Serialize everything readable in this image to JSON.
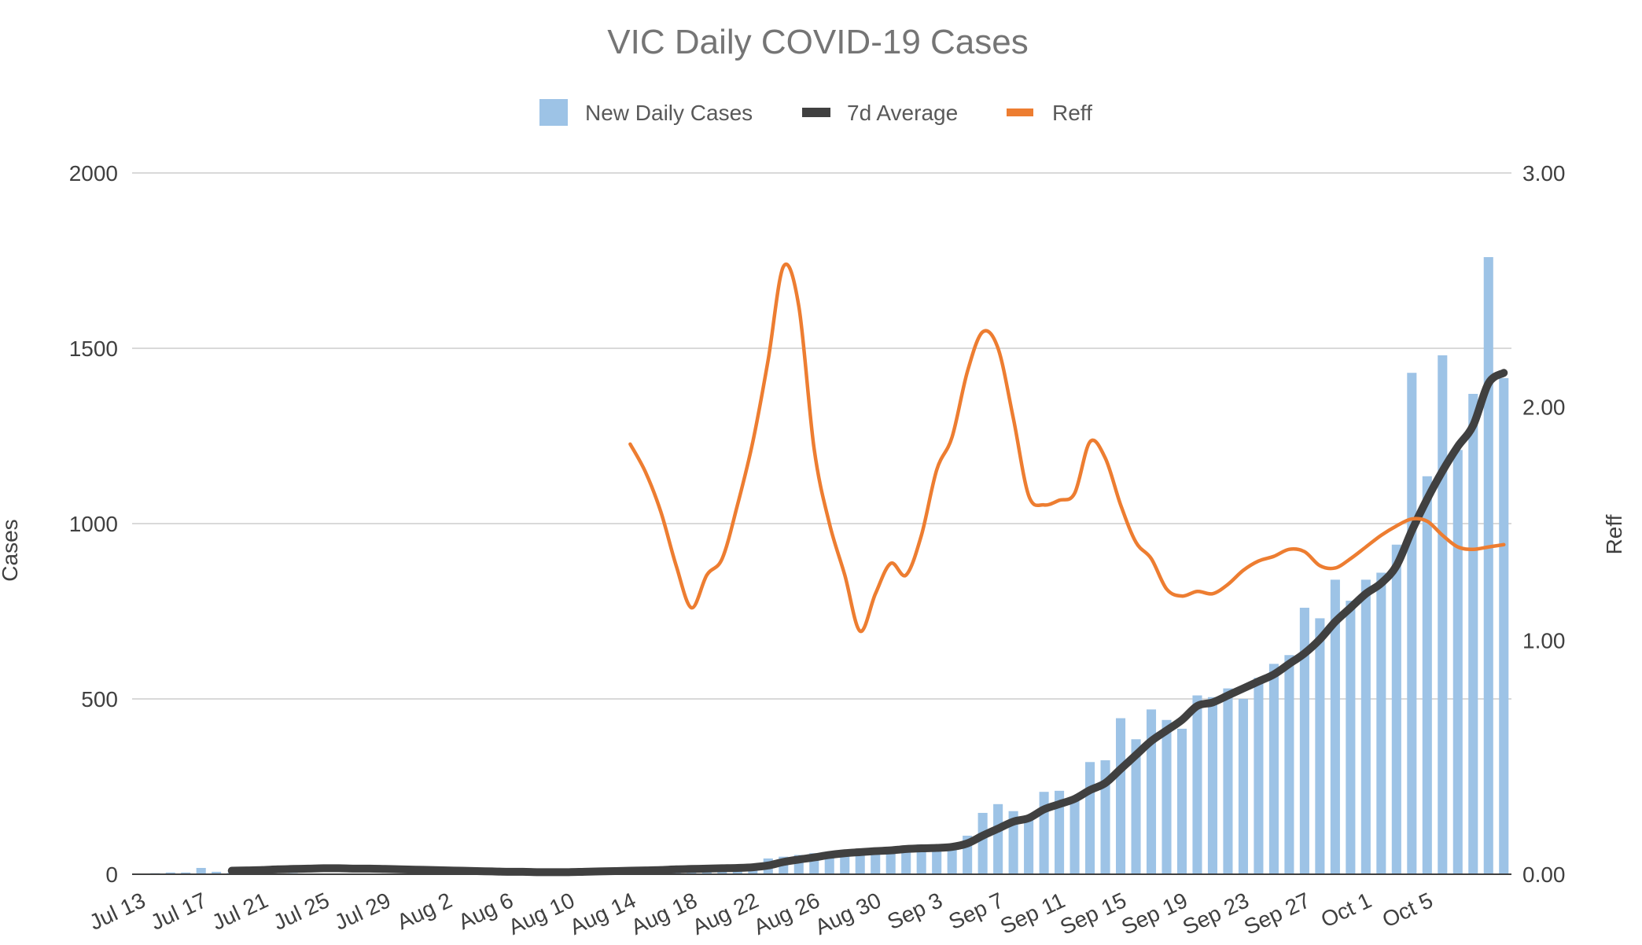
{
  "chart_data": {
    "type": "bar+line",
    "title": "VIC Daily COVID-19 Cases",
    "ylabel": "Cases",
    "y2label": "Reff",
    "ylim": [
      0,
      2000
    ],
    "y2lim": [
      0,
      3
    ],
    "yticks": [
      0,
      500,
      1000,
      1500,
      2000
    ],
    "y2ticks": [
      "0.00",
      "1.00",
      "2.00",
      "3.00"
    ],
    "x_tick_labels": [
      "Jul 13",
      "Jul 17",
      "Jul 21",
      "Jul 25",
      "Jul 29",
      "Aug 2",
      "Aug 6",
      "Aug 10",
      "Aug 14",
      "Aug 18",
      "Aug 22",
      "Aug 26",
      "Aug 30",
      "Sep 3",
      "Sep 7",
      "Sep 11",
      "Sep 15",
      "Sep 19",
      "Sep 23",
      "Sep 27",
      "Oct 1",
      "Oct 5"
    ],
    "colors": {
      "bars": "#9DC3E6",
      "average": "#404040",
      "reff": "#ED7D31"
    },
    "series": [
      {
        "name": "New Daily Cases",
        "type": "bar",
        "axis": "left",
        "values": [
          2,
          3,
          5,
          5,
          18,
          7,
          4,
          3,
          4,
          2,
          3,
          2,
          1,
          2,
          1,
          1,
          2,
          1,
          3,
          2,
          2,
          1,
          3,
          2,
          1,
          1,
          3,
          2,
          16,
          3,
          5,
          4,
          5,
          6,
          9,
          10,
          12,
          12,
          12,
          15,
          30,
          45,
          50,
          55,
          60,
          65,
          65,
          70,
          70,
          75,
          75,
          85,
          70,
          70,
          110,
          175,
          200,
          180,
          165,
          235,
          238,
          215,
          320,
          325,
          445,
          385,
          470,
          440,
          415,
          510,
          505,
          530,
          500,
          560,
          600,
          625,
          760,
          730,
          840,
          780,
          840,
          860,
          940,
          1430,
          1135,
          1480,
          1210,
          1370,
          1760,
          1415
        ]
      },
      {
        "name": "7d Average",
        "type": "line",
        "axis": "left",
        "values": [
          null,
          null,
          null,
          null,
          null,
          null,
          10,
          11,
          12,
          14,
          15,
          16,
          17,
          17,
          16,
          16,
          15,
          14,
          13,
          12,
          11,
          10,
          9,
          8,
          7,
          7,
          6,
          6,
          6,
          7,
          8,
          9,
          10,
          11,
          12,
          14,
          15,
          16,
          17,
          18,
          20,
          25,
          35,
          42,
          48,
          55,
          60,
          63,
          66,
          68,
          72,
          74,
          75,
          78,
          88,
          110,
          130,
          150,
          160,
          185,
          200,
          215,
          240,
          260,
          300,
          340,
          380,
          410,
          440,
          480,
          490,
          510,
          530,
          550,
          570,
          600,
          630,
          670,
          720,
          760,
          800,
          830,
          880,
          980,
          1070,
          1150,
          1220,
          1280,
          1400,
          1430
        ]
      },
      {
        "name": "Reff",
        "type": "line",
        "axis": "right",
        "values": [
          null,
          null,
          null,
          null,
          null,
          null,
          null,
          null,
          null,
          null,
          null,
          null,
          null,
          null,
          null,
          null,
          null,
          null,
          null,
          null,
          null,
          null,
          null,
          null,
          null,
          null,
          null,
          null,
          null,
          null,
          null,
          null,
          1.84,
          1.72,
          1.55,
          1.32,
          1.14,
          1.28,
          1.35,
          1.58,
          1.85,
          2.2,
          2.6,
          2.43,
          1.82,
          1.5,
          1.28,
          1.04,
          1.2,
          1.33,
          1.28,
          1.45,
          1.73,
          1.87,
          2.15,
          2.32,
          2.25,
          1.95,
          1.62,
          1.58,
          1.6,
          1.63,
          1.85,
          1.78,
          1.58,
          1.42,
          1.35,
          1.22,
          1.19,
          1.21,
          1.2,
          1.24,
          1.3,
          1.34,
          1.36,
          1.39,
          1.38,
          1.32,
          1.31,
          1.35,
          1.4,
          1.45,
          1.49,
          1.52,
          1.51,
          1.45,
          1.4,
          1.39,
          1.4,
          1.41
        ]
      }
    ]
  }
}
